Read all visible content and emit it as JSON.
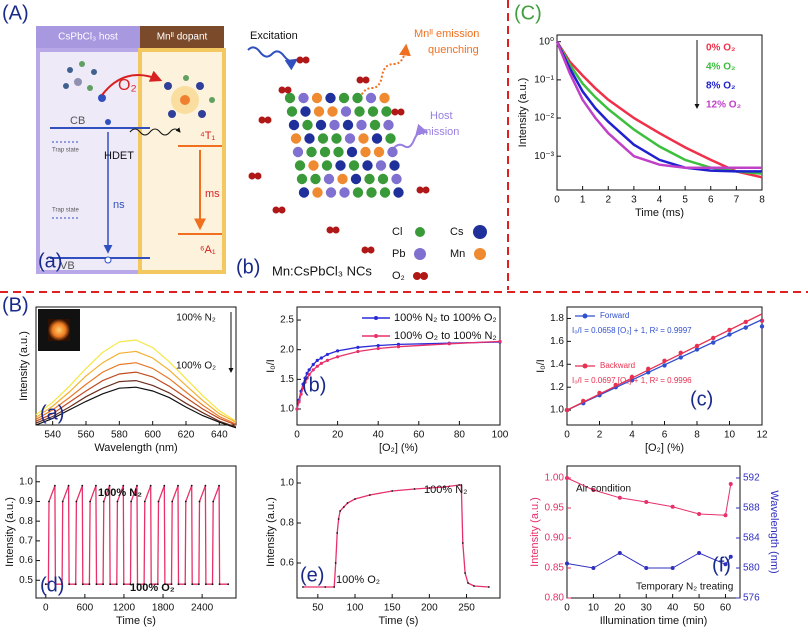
{
  "panel_labels": {
    "A": "(A)",
    "B": "(B)",
    "C": "(C)"
  },
  "diagram_a": {
    "header_host": "CsPbCl₃ host",
    "header_dopant": "Mnᴵᴵ dopant",
    "o2": "O₂",
    "cb": "CB",
    "vb": "VB",
    "trap_states": [
      "Trap state",
      "Trap state"
    ],
    "hdet": "HDET",
    "ns": "ns",
    "ms": "ms",
    "t1": "⁴T₁",
    "a1": "⁶A₁",
    "panel": "(a)"
  },
  "diagram_b": {
    "excitation": "Excitation",
    "quenching": [
      "Mnᴵᴵ emission",
      "quenching"
    ],
    "host_emission": [
      "Host",
      "emission"
    ],
    "legend": [
      "Cl",
      "Cs",
      "Pb",
      "Mn",
      "O₂"
    ],
    "panel": "(b)",
    "caption": "Mn:CsPbCl₃ NCs"
  },
  "chart_data": [
    {
      "type": "line",
      "xlabel": "Time (ms)",
      "ylabel": "Intensity (a.u.)",
      "ylog": true,
      "x": [
        0,
        0.5,
        1,
        1.5,
        2,
        3,
        4,
        5,
        6,
        7,
        8
      ],
      "xlim": [
        0,
        8
      ],
      "xticks": [
        0,
        1,
        2,
        3,
        4,
        5,
        6,
        7,
        8
      ],
      "ylim": [
        0.00013,
        1.5
      ],
      "yticks": [
        {
          "value": 1,
          "label": "10⁰"
        },
        {
          "value": 0.1,
          "label": "10⁻¹"
        },
        {
          "value": 0.01,
          "label": "10⁻²"
        },
        {
          "value": 0.001,
          "label": "10⁻³"
        }
      ],
      "series": [
        {
          "name": "0% O₂",
          "color": "#f0304a",
          "values": [
            1,
            0.3,
            0.13,
            0.06,
            0.03,
            0.01,
            0.004,
            0.0017,
            0.0008,
            0.0004,
            0.00028
          ]
        },
        {
          "name": "4% O₂",
          "color": "#3cbf3c",
          "values": [
            1,
            0.25,
            0.08,
            0.035,
            0.017,
            0.005,
            0.0018,
            0.0008,
            0.0005,
            0.0004,
            0.00035
          ]
        },
        {
          "name": "8% O₂",
          "color": "#2020d0",
          "values": [
            1,
            0.2,
            0.05,
            0.018,
            0.008,
            0.002,
            0.0008,
            0.0005,
            0.00042,
            0.0004,
            0.0004
          ]
        },
        {
          "name": "12% O₂",
          "color": "#c040c8",
          "values": [
            1,
            0.15,
            0.03,
            0.01,
            0.004,
            0.001,
            0.0006,
            0.0005,
            0.0005,
            0.0005,
            0.0005
          ]
        }
      ]
    },
    {
      "type": "line",
      "xlabel": "Wavelength (nm)",
      "ylabel": "Intensity (a.u.)",
      "panel_label": "(a)",
      "annotations": [
        "100% N₂",
        "100% O₂"
      ],
      "x": [
        530,
        540,
        550,
        560,
        570,
        580,
        590,
        600,
        610,
        620,
        630,
        640,
        650
      ],
      "xlim": [
        530,
        650
      ],
      "xticks": [
        540,
        560,
        580,
        600,
        620,
        640
      ],
      "ylim": [
        0.1,
        1.35
      ],
      "series": [
        {
          "color": "#f5e642",
          "values": [
            0.21,
            0.34,
            0.51,
            0.7,
            0.87,
            0.98,
            1.0,
            0.92,
            0.77,
            0.59,
            0.41,
            0.25,
            0.14
          ]
        },
        {
          "color": "#f4b030",
          "values": [
            0.18,
            0.3,
            0.45,
            0.62,
            0.76,
            0.86,
            0.88,
            0.81,
            0.68,
            0.52,
            0.36,
            0.22,
            0.13
          ]
        },
        {
          "color": "#e87a28",
          "values": [
            0.16,
            0.26,
            0.39,
            0.53,
            0.66,
            0.74,
            0.76,
            0.7,
            0.59,
            0.45,
            0.31,
            0.19,
            0.11
          ]
        },
        {
          "color": "#c04c22",
          "values": [
            0.14,
            0.22,
            0.34,
            0.46,
            0.57,
            0.64,
            0.66,
            0.61,
            0.51,
            0.39,
            0.27,
            0.17,
            0.1
          ]
        },
        {
          "color": "#6a3020",
          "values": [
            0.12,
            0.19,
            0.29,
            0.4,
            0.49,
            0.56,
            0.57,
            0.52,
            0.44,
            0.33,
            0.23,
            0.14,
            0.08
          ]
        },
        {
          "color": "#111111",
          "values": [
            0.1,
            0.17,
            0.26,
            0.35,
            0.43,
            0.49,
            0.5,
            0.46,
            0.39,
            0.29,
            0.2,
            0.13,
            0.07
          ]
        }
      ]
    },
    {
      "type": "line",
      "xlabel": "[O₂] (%)",
      "ylabel": "I₀/I",
      "panel_label": "(b)",
      "x": [
        0,
        1,
        2,
        3,
        4,
        5,
        6,
        8,
        10,
        12,
        15,
        20,
        30,
        40,
        50,
        75,
        100
      ],
      "xlim": [
        0,
        100
      ],
      "xticks": [
        0,
        20,
        40,
        60,
        80,
        100
      ],
      "ylim": [
        0.73,
        2.72
      ],
      "yticks": [
        {
          "value": 1,
          "label": "1.0"
        },
        1.5,
        {
          "value": 2,
          "label": "2.0"
        },
        2.5
      ],
      "series": [
        {
          "name": "100% N₂ to 100% O₂",
          "color": "#2a2ad8",
          "values": [
            1.0,
            1.15,
            1.3,
            1.42,
            1.52,
            1.6,
            1.66,
            1.75,
            1.82,
            1.86,
            1.92,
            1.98,
            2.04,
            2.07,
            2.09,
            2.11,
            2.13
          ]
        },
        {
          "name": "100% O₂ to 100% N₂",
          "color": "#e8306a",
          "values": [
            1.0,
            1.12,
            1.25,
            1.36,
            1.45,
            1.52,
            1.58,
            1.66,
            1.72,
            1.77,
            1.82,
            1.88,
            1.97,
            2.02,
            2.05,
            2.1,
            2.14
          ]
        }
      ]
    },
    {
      "type": "scatter",
      "xlabel": "[O₂] (%)",
      "ylabel": "I₀/I",
      "panel_label": "(c)",
      "equations": [
        "I₀/I = 0.0658 [O₂] + 1, R² = 0.9997",
        "I₀/I = 0.0697 [O₂] + 1, R² = 0.9996"
      ],
      "x": [
        0,
        1,
        2,
        3,
        4,
        5,
        6,
        7,
        8,
        9,
        10,
        11,
        12
      ],
      "xlim": [
        0,
        12
      ],
      "xticks": [
        0,
        2,
        4,
        6,
        8,
        10,
        12
      ],
      "ylim": [
        0.87,
        1.9
      ],
      "yticks": [
        {
          "value": 1,
          "label": "1.0"
        },
        1.2,
        1.4,
        1.6,
        1.8
      ],
      "series": [
        {
          "name": "Forward",
          "color": "#3050d0",
          "values": [
            1.0,
            1.06,
            1.13,
            1.2,
            1.26,
            1.33,
            1.39,
            1.46,
            1.53,
            1.59,
            1.66,
            1.72,
            1.73
          ]
        },
        {
          "name": "Backward",
          "color": "#e83050",
          "values": [
            1.0,
            1.08,
            1.15,
            1.22,
            1.29,
            1.36,
            1.43,
            1.5,
            1.56,
            1.63,
            1.7,
            1.77,
            1.78
          ]
        }
      ],
      "fits": [
        {
          "color": "#3050d0",
          "x": [
            0,
            12
          ],
          "values": [
            1.0,
            1.79
          ]
        },
        {
          "color": "#e83050",
          "x": [
            0,
            12
          ],
          "values": [
            1.0,
            1.84
          ]
        }
      ]
    },
    {
      "type": "line",
      "xlabel": "Time (s)",
      "ylabel": "Intensity (a.u.)",
      "panel_label": "(d)",
      "annotations": [
        "100% N₂",
        "100% O₂"
      ],
      "marker_color": "#111111",
      "x": [
        0,
        40,
        50,
        140,
        148,
        250,
        260,
        350,
        358,
        460,
        470,
        560,
        568,
        670,
        680,
        770,
        778,
        880,
        890,
        980,
        988,
        1090,
        1100,
        1190,
        1198,
        1300,
        1310,
        1400,
        1408,
        1510,
        1520,
        1610,
        1618,
        1720,
        1730,
        1820,
        1828,
        1930,
        1940,
        2030,
        2038,
        2140,
        2150,
        2240,
        2248,
        2350,
        2360,
        2450,
        2458,
        2560,
        2570,
        2660,
        2668,
        2800
      ],
      "xlim": [
        -150,
        2920
      ],
      "xticks": [
        0,
        600,
        1200,
        1800,
        2400
      ],
      "ylim": [
        0.41,
        1.08
      ],
      "yticks": [
        0.5,
        0.6,
        0.7,
        0.8,
        0.9,
        {
          "value": 1,
          "label": "1.0"
        }
      ],
      "series": [
        {
          "color": "#e8306a",
          "values": [
            0.48,
            0.48,
            0.9,
            0.98,
            0.48,
            0.48,
            0.9,
            0.98,
            0.48,
            0.48,
            0.9,
            0.98,
            0.48,
            0.48,
            0.9,
            0.98,
            0.48,
            0.48,
            0.9,
            0.98,
            0.48,
            0.48,
            0.9,
            0.98,
            0.48,
            0.48,
            0.9,
            0.98,
            0.48,
            0.48,
            0.9,
            0.98,
            0.48,
            0.48,
            0.9,
            0.98,
            0.48,
            0.48,
            0.9,
            0.98,
            0.48,
            0.48,
            0.9,
            0.98,
            0.48,
            0.48,
            0.9,
            0.98,
            0.48,
            0.48,
            0.9,
            0.98,
            0.48,
            0.48
          ]
        }
      ]
    },
    {
      "type": "line",
      "xlabel": "Time (s)",
      "ylabel": "Intensity (a.u.)",
      "panel_label": "(e)",
      "annotations": [
        "100% N₂",
        "100% O₂"
      ],
      "marker_color": "#111111",
      "x": [
        30,
        60,
        72,
        74,
        76,
        78,
        80,
        85,
        90,
        100,
        120,
        150,
        180,
        200,
        220,
        240,
        243,
        245,
        248,
        252,
        260,
        280
      ],
      "xlim": [
        22,
        295
      ],
      "xticks": [
        50,
        100,
        150,
        200,
        250
      ],
      "ylim": [
        0.425,
        1.085
      ],
      "yticks": [
        0.6,
        0.8,
        {
          "value": 1,
          "label": "1.0"
        }
      ],
      "series": [
        {
          "color": "#e8306a",
          "values": [
            0.48,
            0.48,
            0.48,
            0.6,
            0.75,
            0.82,
            0.86,
            0.88,
            0.9,
            0.92,
            0.94,
            0.96,
            0.97,
            0.975,
            0.98,
            0.99,
            0.99,
            0.7,
            0.55,
            0.5,
            0.485,
            0.48
          ]
        }
      ]
    },
    {
      "type": "line",
      "xlabel": "Illumination time (min)",
      "ylabel": "Intensity (a.u.)",
      "y2label": "Wavelength (nm)",
      "panel_label": "(f)",
      "annotations": [
        "Air condition",
        "Temporary N₂ treating"
      ],
      "x": [
        0,
        10,
        20,
        30,
        40,
        50,
        60,
        62
      ],
      "xlim": [
        0,
        65.5
      ],
      "xticks": [
        0,
        10,
        20,
        30,
        40,
        50,
        60
      ],
      "ylim": [
        0.8,
        1.02
      ],
      "yticks": [
        {
          "value": 0.8,
          "label": "0.80"
        },
        0.85,
        {
          "value": 0.9,
          "label": "0.90"
        },
        0.95,
        {
          "value": 1,
          "label": "1.00"
        }
      ],
      "y2lim": [
        576,
        593.6
      ],
      "y2ticks": [
        576,
        580,
        584,
        588,
        592
      ],
      "series": [
        {
          "color": "#e8306a",
          "values": [
            1.0,
            0.98,
            0.967,
            0.96,
            0.952,
            0.94,
            0.938,
            0.99
          ]
        },
        {
          "color": "#3030c0",
          "axis": "y2",
          "values": [
            580.6,
            580,
            582,
            580,
            580,
            582,
            580.5,
            581.5
          ]
        }
      ]
    }
  ]
}
